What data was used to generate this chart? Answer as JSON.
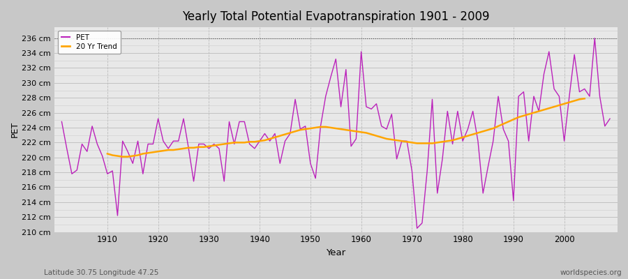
{
  "title": "Yearly Total Potential Evapotranspiration 1901 - 2009",
  "xlabel": "Year",
  "ylabel": "PET",
  "subtitle": "Latitude 30.75 Longitude 47.25",
  "watermark": "worldspecies.org",
  "pet_color": "#bb22bb",
  "trend_color": "#ffa500",
  "fig_bg_color": "#c8c8c8",
  "plot_bg_color": "#e8e8e8",
  "ylim": [
    210,
    237
  ],
  "ytick_step": 2,
  "dotted_line_y": 236,
  "xticks": [
    1910,
    1920,
    1930,
    1940,
    1950,
    1960,
    1970,
    1980,
    1990,
    2000
  ],
  "years": [
    1901,
    1902,
    1903,
    1904,
    1905,
    1906,
    1907,
    1908,
    1909,
    1910,
    1911,
    1912,
    1913,
    1914,
    1915,
    1916,
    1917,
    1918,
    1919,
    1920,
    1921,
    1922,
    1923,
    1924,
    1925,
    1926,
    1927,
    1928,
    1929,
    1930,
    1931,
    1932,
    1933,
    1934,
    1935,
    1936,
    1937,
    1938,
    1939,
    1940,
    1941,
    1942,
    1943,
    1944,
    1945,
    1946,
    1947,
    1948,
    1949,
    1950,
    1951,
    1952,
    1953,
    1954,
    1955,
    1956,
    1957,
    1958,
    1959,
    1960,
    1961,
    1962,
    1963,
    1964,
    1965,
    1966,
    1967,
    1968,
    1969,
    1970,
    1971,
    1972,
    1973,
    1974,
    1975,
    1976,
    1977,
    1978,
    1979,
    1980,
    1981,
    1982,
    1983,
    1984,
    1985,
    1986,
    1987,
    1988,
    1989,
    1990,
    1991,
    1992,
    1993,
    1994,
    1995,
    1996,
    1997,
    1998,
    1999,
    2000,
    2001,
    2002,
    2003,
    2004,
    2005,
    2006,
    2007,
    2008,
    2009
  ],
  "pet_values": [
    224.8,
    221.2,
    217.8,
    218.3,
    221.8,
    220.8,
    224.2,
    221.8,
    220.2,
    217.8,
    218.2,
    212.2,
    222.2,
    220.8,
    219.2,
    222.2,
    217.8,
    221.8,
    221.8,
    225.2,
    222.2,
    221.2,
    222.2,
    222.2,
    225.2,
    221.2,
    216.8,
    221.8,
    221.8,
    221.2,
    221.8,
    221.2,
    216.8,
    224.8,
    221.8,
    224.8,
    224.8,
    221.8,
    221.2,
    222.2,
    223.2,
    222.2,
    223.2,
    219.2,
    222.2,
    223.2,
    227.8,
    223.8,
    224.2,
    219.2,
    217.2,
    224.2,
    228.2,
    230.8,
    233.2,
    226.8,
    231.8,
    221.5,
    222.5,
    234.2,
    226.8,
    226.5,
    227.2,
    224.2,
    223.8,
    225.8,
    219.8,
    222.2,
    222.2,
    218.2,
    210.5,
    211.2,
    218.2,
    227.8,
    215.2,
    219.8,
    226.2,
    221.8,
    226.2,
    222.2,
    223.8,
    226.2,
    222.2,
    215.2,
    218.8,
    222.2,
    228.2,
    223.8,
    222.2,
    214.2,
    228.2,
    228.8,
    222.2,
    228.2,
    226.2,
    231.2,
    234.2,
    229.2,
    228.2,
    222.2,
    228.2,
    233.8,
    228.8,
    229.2,
    228.2,
    236.0,
    228.2,
    224.2,
    225.2
  ],
  "trend_values": [
    null,
    null,
    null,
    null,
    null,
    null,
    null,
    null,
    null,
    220.5,
    220.3,
    220.2,
    220.1,
    220.1,
    220.2,
    220.3,
    220.5,
    220.6,
    220.7,
    220.8,
    220.9,
    221.0,
    221.0,
    221.1,
    221.2,
    221.3,
    221.3,
    221.4,
    221.4,
    221.5,
    221.6,
    221.7,
    221.8,
    221.9,
    222.0,
    222.0,
    222.0,
    222.1,
    222.1,
    222.2,
    222.3,
    222.5,
    222.7,
    222.9,
    223.1,
    223.3,
    223.5,
    223.7,
    223.8,
    223.9,
    224.0,
    224.1,
    224.1,
    224.0,
    223.9,
    223.8,
    223.7,
    223.6,
    223.5,
    223.4,
    223.3,
    223.1,
    222.9,
    222.7,
    222.5,
    222.4,
    222.3,
    222.2,
    222.1,
    222.0,
    221.9,
    221.9,
    221.9,
    221.9,
    222.0,
    222.1,
    222.2,
    222.3,
    222.5,
    222.7,
    222.9,
    223.1,
    223.3,
    223.5,
    223.7,
    223.9,
    224.2,
    224.5,
    224.8,
    225.1,
    225.4,
    225.6,
    225.8,
    226.0,
    226.2,
    226.4,
    226.6,
    226.8,
    227.0,
    227.2,
    227.4,
    227.6,
    227.8,
    227.9,
    null,
    null,
    null,
    null,
    null
  ]
}
